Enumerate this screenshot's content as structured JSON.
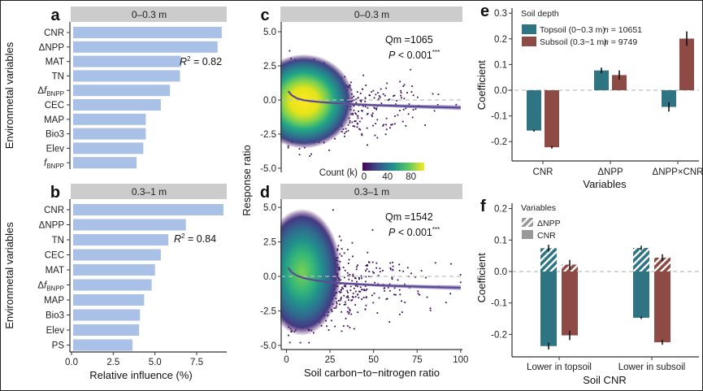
{
  "colors": {
    "importance_bar": "#a9c1e6",
    "strip_bg": "#cccccc",
    "topsoil": "#2f7483",
    "subsoil": "#8e4a44",
    "fit_line": "#5b4a8f",
    "fit_ribbon": "#8f80c8",
    "zero_line": "#bfbfbf"
  },
  "chart_data": [
    {
      "id": "a",
      "panel_letter": "a",
      "type": "bar",
      "orientation": "horizontal",
      "strip": "0–0.3 m",
      "ylabel": "Environmetal variables",
      "xlabel": "",
      "xlim": [
        0,
        9.3
      ],
      "xticks": [
        0.0,
        2.5,
        5.0,
        7.5
      ],
      "xtick_labels": [
        "0.0",
        "2.5",
        "5.0",
        "7.5"
      ],
      "show_xticks": false,
      "categories": [
        "CNR",
        "ΔNPP",
        "MAT",
        "TN",
        "ΔfBNPP",
        "CEC",
        "MAP",
        "Bio3",
        "Elev",
        "fBNPP"
      ],
      "category_display": [
        {
          "pre": "CNR"
        },
        {
          "pre": "ΔNPP"
        },
        {
          "pre": "MAT"
        },
        {
          "pre": "TN"
        },
        {
          "pre": "Δ",
          "italic": "f",
          "sub": "BNPP"
        },
        {
          "pre": "CEC"
        },
        {
          "pre": "MAP"
        },
        {
          "pre": "Bio3"
        },
        {
          "pre": "Elev"
        },
        {
          "pre": "",
          "italic": "f",
          "sub": "BNPP"
        }
      ],
      "values": [
        9.0,
        8.75,
        6.55,
        6.5,
        5.9,
        5.35,
        4.45,
        4.45,
        4.3,
        3.9
      ],
      "annotation": {
        "r2_label": "R",
        "r2_sup": "2",
        "r2_value": " = 0.82"
      }
    },
    {
      "id": "b",
      "panel_letter": "b",
      "type": "bar",
      "orientation": "horizontal",
      "strip": "0.3–1 m",
      "ylabel": "Environmetal variables",
      "xlabel": "Relative influence (%)",
      "xlim": [
        0,
        9.3
      ],
      "xticks": [
        0.0,
        2.5,
        5.0,
        7.5
      ],
      "xtick_labels": [
        "0.0",
        "2.5",
        "5.0",
        "7.5"
      ],
      "show_xticks": true,
      "categories": [
        "CNR",
        "ΔNPP",
        "TN",
        "CEC",
        "MAT",
        "ΔfBNPP",
        "MAP",
        "Bio3",
        "Elev",
        "PS"
      ],
      "category_display": [
        {
          "pre": "CNR"
        },
        {
          "pre": "ΔNPP"
        },
        {
          "pre": "TN"
        },
        {
          "pre": "CEC"
        },
        {
          "pre": "MAT"
        },
        {
          "pre": "Δ",
          "italic": "f",
          "sub": "BNPP"
        },
        {
          "pre": "MAP"
        },
        {
          "pre": "Bio3"
        },
        {
          "pre": "Elev"
        },
        {
          "pre": "PS"
        }
      ],
      "values": [
        9.1,
        6.85,
        5.8,
        5.35,
        5.0,
        4.8,
        4.35,
        4.1,
        4.05,
        3.65
      ],
      "annotation": {
        "r2_label": "R",
        "r2_sup": "2",
        "r2_value": " = 0.84"
      }
    },
    {
      "id": "c",
      "panel_letter": "c",
      "type": "scatter",
      "strip": "0–0.3 m",
      "ylabel": "Response ratio",
      "xlabel": "",
      "xlim": [
        -3,
        101
      ],
      "ylim": [
        -5.3,
        5.3
      ],
      "yticks": [
        5.0,
        2.5,
        0.0,
        -2.5,
        -5.0
      ],
      "ytick_labels": [
        "5.0",
        "2.5",
        "0.0",
        "-2.5",
        "-5.0"
      ],
      "show_xticks": false,
      "density_center": {
        "x": 10,
        "y": -0.1
      },
      "fit_curve": {
        "x": [
          1,
          3,
          6,
          10,
          15,
          20,
          30,
          40,
          50,
          60,
          70,
          80,
          90,
          100
        ],
        "y": [
          0.65,
          0.35,
          0.12,
          -0.02,
          -0.1,
          -0.16,
          -0.25,
          -0.32,
          -0.38,
          -0.42,
          -0.46,
          -0.5,
          -0.53,
          -0.56
        ]
      },
      "annotation": {
        "qm": "Qm =1065",
        "p_italic": "P",
        "p_rest": " < 0.001",
        "stars": "***"
      },
      "colorbar": {
        "label": "Count (k)",
        "ticks": [
          "0",
          "40",
          "80"
        ],
        "range": [
          0,
          100
        ]
      }
    },
    {
      "id": "d",
      "panel_letter": "d",
      "type": "scatter",
      "strip": "0.3–1 m",
      "ylabel": "Response ratio",
      "xlabel": "Soil carbon−to−nitrogen ratio",
      "xlim": [
        -3,
        101
      ],
      "ylim": [
        -5.3,
        5.3
      ],
      "yticks": [
        5.0,
        2.5,
        0.0,
        -2.5,
        -5.0
      ],
      "ytick_labels": [
        "5.0",
        "2.5",
        "0.0",
        "-2.5",
        "-5.0"
      ],
      "xticks": [
        0,
        25,
        50,
        75,
        100
      ],
      "xtick_labels": [
        "0",
        "25",
        "50",
        "75",
        "100"
      ],
      "show_xticks": true,
      "density_center": {
        "x": 9,
        "y": 0.3
      },
      "fit_curve": {
        "x": [
          1,
          3,
          6,
          10,
          15,
          20,
          30,
          40,
          50,
          60,
          70,
          80,
          90,
          100
        ],
        "y": [
          0.62,
          0.3,
          0.05,
          -0.12,
          -0.25,
          -0.35,
          -0.48,
          -0.56,
          -0.63,
          -0.68,
          -0.72,
          -0.76,
          -0.79,
          -0.82
        ]
      },
      "annotation": {
        "qm": "Qm =1542",
        "p_italic": "P",
        "p_rest": " < 0.001",
        "stars": "***"
      }
    },
    {
      "id": "e",
      "panel_letter": "e",
      "type": "bar",
      "orientation": "vertical",
      "ylabel": "Coefficient",
      "xlabel": "Variables",
      "ylim": [
        -0.27,
        0.32
      ],
      "yticks": [
        0.3,
        0.2,
        0.1,
        0.0,
        -0.1,
        -0.2
      ],
      "ytick_labels": [
        "0.3",
        "0.2",
        "0.1",
        "0.0",
        "-0.1",
        "-0.2"
      ],
      "categories": [
        "CNR",
        "ΔNPP",
        "ΔNPP×CNR"
      ],
      "legend_title": "Soil depth",
      "legend_position": "top-left",
      "series": [
        {
          "name": "Topsoil (0−0.3 m)",
          "n_label": "n",
          "n_value": " = 10651",
          "values": [
            -0.157,
            0.077,
            -0.065
          ],
          "errors": [
            0.004,
            0.011,
            0.018
          ]
        },
        {
          "name": "Subsoil (0.3−1 m)",
          "n_label": "n",
          "n_value": " = 9749",
          "values": [
            -0.222,
            0.059,
            0.201
          ],
          "errors": [
            0.005,
            0.018,
            0.028
          ]
        }
      ]
    },
    {
      "id": "f",
      "panel_letter": "f",
      "type": "bar",
      "orientation": "vertical",
      "stacked": true,
      "ylabel": "Coefficient",
      "xlabel": "Soil CNR",
      "ylim": [
        -0.27,
        0.22
      ],
      "yticks": [
        0.2,
        0.1,
        0.0,
        -0.1,
        -0.2
      ],
      "ytick_labels": [
        "0.2",
        "0.1",
        "0.0",
        "-0.1",
        "-0.2"
      ],
      "categories": [
        "Lower in topsoil",
        "Lower in subsoil"
      ],
      "legend_title": "Variables",
      "legend_position": "top-left",
      "legend_items": [
        {
          "name": "ΔNPP",
          "pattern": "hatched"
        },
        {
          "name": "CNR",
          "pattern": "solid"
        }
      ],
      "series": [
        {
          "name": "Topsoil",
          "dNPP": [
            0.074,
            0.075
          ],
          "dNPP_err": [
            0.011,
            0.007
          ],
          "CNR": [
            -0.237,
            -0.147
          ],
          "CNR_err": [
            0.011,
            0.004
          ]
        },
        {
          "name": "Subsoil",
          "dNPP": [
            0.022,
            0.044
          ],
          "dNPP_err": [
            0.015,
            0.011
          ],
          "CNR": [
            -0.203,
            -0.225
          ],
          "CNR_err": [
            0.015,
            0.008
          ]
        }
      ]
    }
  ]
}
